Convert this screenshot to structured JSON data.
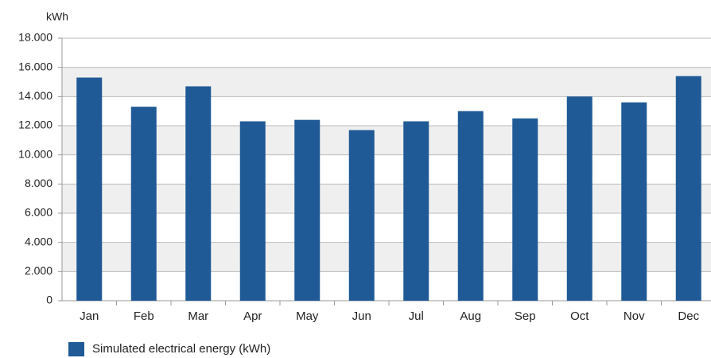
{
  "chart_data": {
    "type": "bar",
    "y_label": "kWh",
    "categories": [
      "Jan",
      "Feb",
      "Mar",
      "Apr",
      "May",
      "Jun",
      "Jul",
      "Aug",
      "Sep",
      "Oct",
      "Nov",
      "Dec"
    ],
    "series": [
      {
        "name": "Simulated electrical energy (kWh)",
        "color": "#1f5a96",
        "values": [
          15300,
          13300,
          14700,
          12300,
          12400,
          11700,
          12300,
          13000,
          12500,
          14000,
          13600,
          15400
        ]
      }
    ],
    "ylim": [
      0,
      18000
    ],
    "yticks": [
      0,
      {
        "value": 2000,
        "label": "2.000"
      },
      {
        "value": 4000,
        "label": "4.000"
      },
      {
        "value": 6000,
        "label": "6.000"
      },
      {
        "value": 8000,
        "label": "8.000"
      },
      {
        "value": 10000,
        "label": "10.000"
      },
      {
        "value": 12000,
        "label": "12.000"
      },
      {
        "value": 14000,
        "label": "14.000"
      },
      {
        "value": 16000,
        "label": "16.000"
      },
      {
        "value": 18000,
        "label": "18.000"
      }
    ],
    "grid": true,
    "legend": "bottom-left"
  }
}
